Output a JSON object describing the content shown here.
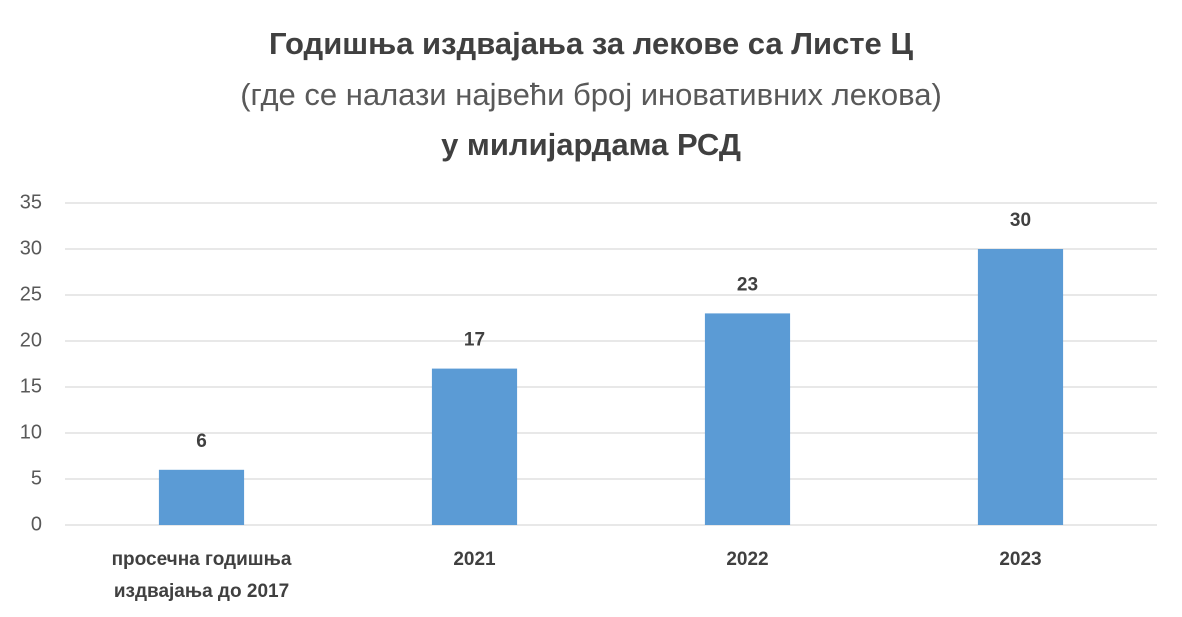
{
  "chart_data": {
    "type": "bar",
    "title": "Годишња издвајања за лекове са Листе Ц",
    "subtitle": "(где се налази највећи број иновативних лекова)",
    "unit_line": "у милијардама РСД",
    "categories": [
      "просечна годишња издвајања до 2017",
      "2021",
      "2022",
      "2023"
    ],
    "values": [
      6,
      17,
      23,
      30
    ],
    "color": "#5b9bd5",
    "ylim": [
      0,
      35
    ],
    "yticks": [
      0,
      5,
      10,
      15,
      20,
      25,
      30,
      35
    ],
    "grid": true
  }
}
